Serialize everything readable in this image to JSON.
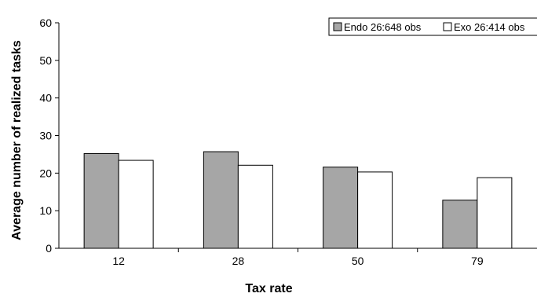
{
  "chart_data": {
    "type": "bar",
    "title": "",
    "xlabel": "Tax rate",
    "ylabel": "Average number of realized tasks",
    "categories": [
      "12",
      "28",
      "50",
      "79"
    ],
    "series": [
      {
        "name": "Endo 26:648 obs",
        "values": [
          25.2,
          25.7,
          21.6,
          12.8
        ],
        "color": "#a6a6a6"
      },
      {
        "name": "Exo 26:414 obs",
        "values": [
          23.4,
          22.1,
          20.3,
          18.8
        ],
        "color": "#ffffff"
      }
    ],
    "ylim": [
      0,
      60
    ],
    "yticks": [
      0,
      10,
      20,
      30,
      40,
      50,
      60
    ],
    "grid": false,
    "legend_position": "top-right"
  }
}
